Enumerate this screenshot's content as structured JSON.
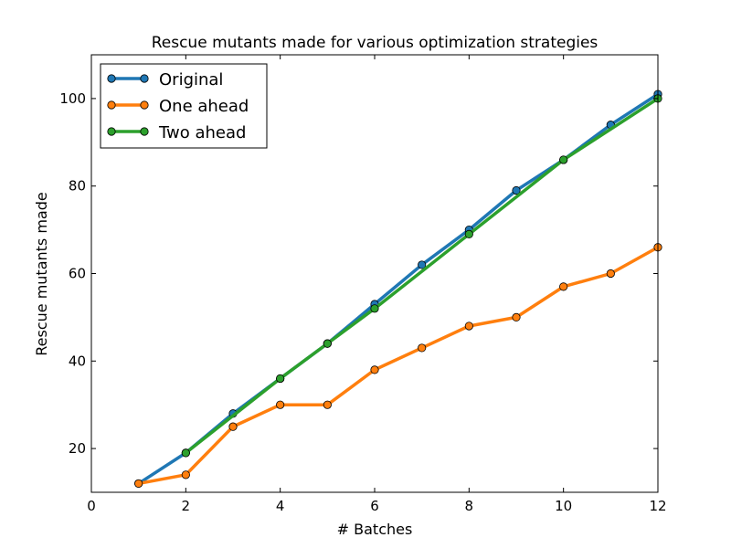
{
  "chart_data": {
    "type": "line",
    "title": "Rescue mutants made for various optimization strategies",
    "xlabel": "# Batches",
    "ylabel": "Rescue mutants made",
    "xlim": [
      0,
      12
    ],
    "ylim": [
      10,
      110
    ],
    "xticks": [
      0,
      2,
      4,
      6,
      8,
      10,
      12
    ],
    "yticks": [
      20,
      40,
      60,
      80,
      100
    ],
    "grid": false,
    "legend_position": "top-left",
    "series": [
      {
        "name": "Original",
        "color": "#1f77b4",
        "x": [
          1,
          2,
          3,
          4,
          5,
          6,
          7,
          8,
          9,
          10,
          11,
          12
        ],
        "y": [
          12,
          19,
          28,
          36,
          44,
          53,
          62,
          70,
          79,
          86,
          94,
          101
        ]
      },
      {
        "name": "One ahead",
        "color": "#ff7f0e",
        "x": [
          1,
          2,
          3,
          4,
          5,
          6,
          7,
          8,
          9,
          10,
          11,
          12
        ],
        "y": [
          12,
          14,
          25,
          30,
          30,
          38,
          43,
          48,
          50,
          57,
          60,
          66
        ]
      },
      {
        "name": "Two ahead",
        "color": "#2ca02c",
        "x": [
          2,
          4,
          5,
          6,
          8,
          10,
          12
        ],
        "y": [
          19,
          36,
          44,
          52,
          69,
          86,
          100
        ]
      }
    ]
  }
}
